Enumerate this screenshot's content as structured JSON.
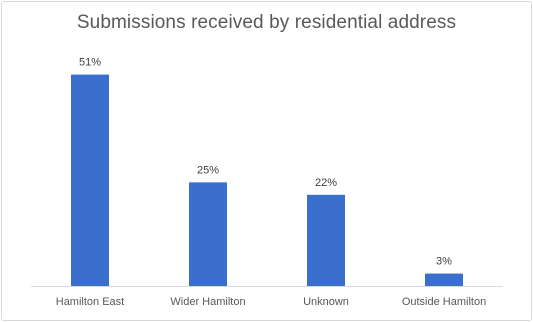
{
  "chart_data": {
    "type": "bar",
    "title": "Submissions received by residential address",
    "categories": [
      "Hamilton East",
      "Wider Hamilton",
      "Unknown",
      "Outside Hamilton"
    ],
    "values": [
      51,
      25,
      22,
      3
    ],
    "data_labels": [
      "51%",
      "25%",
      "22%",
      "3%"
    ],
    "unit": "%",
    "ylim": [
      0,
      55
    ],
    "grid": false,
    "legend": "none",
    "bar_color": "#3a6fcd",
    "axis_color": "#d9d9d9"
  }
}
